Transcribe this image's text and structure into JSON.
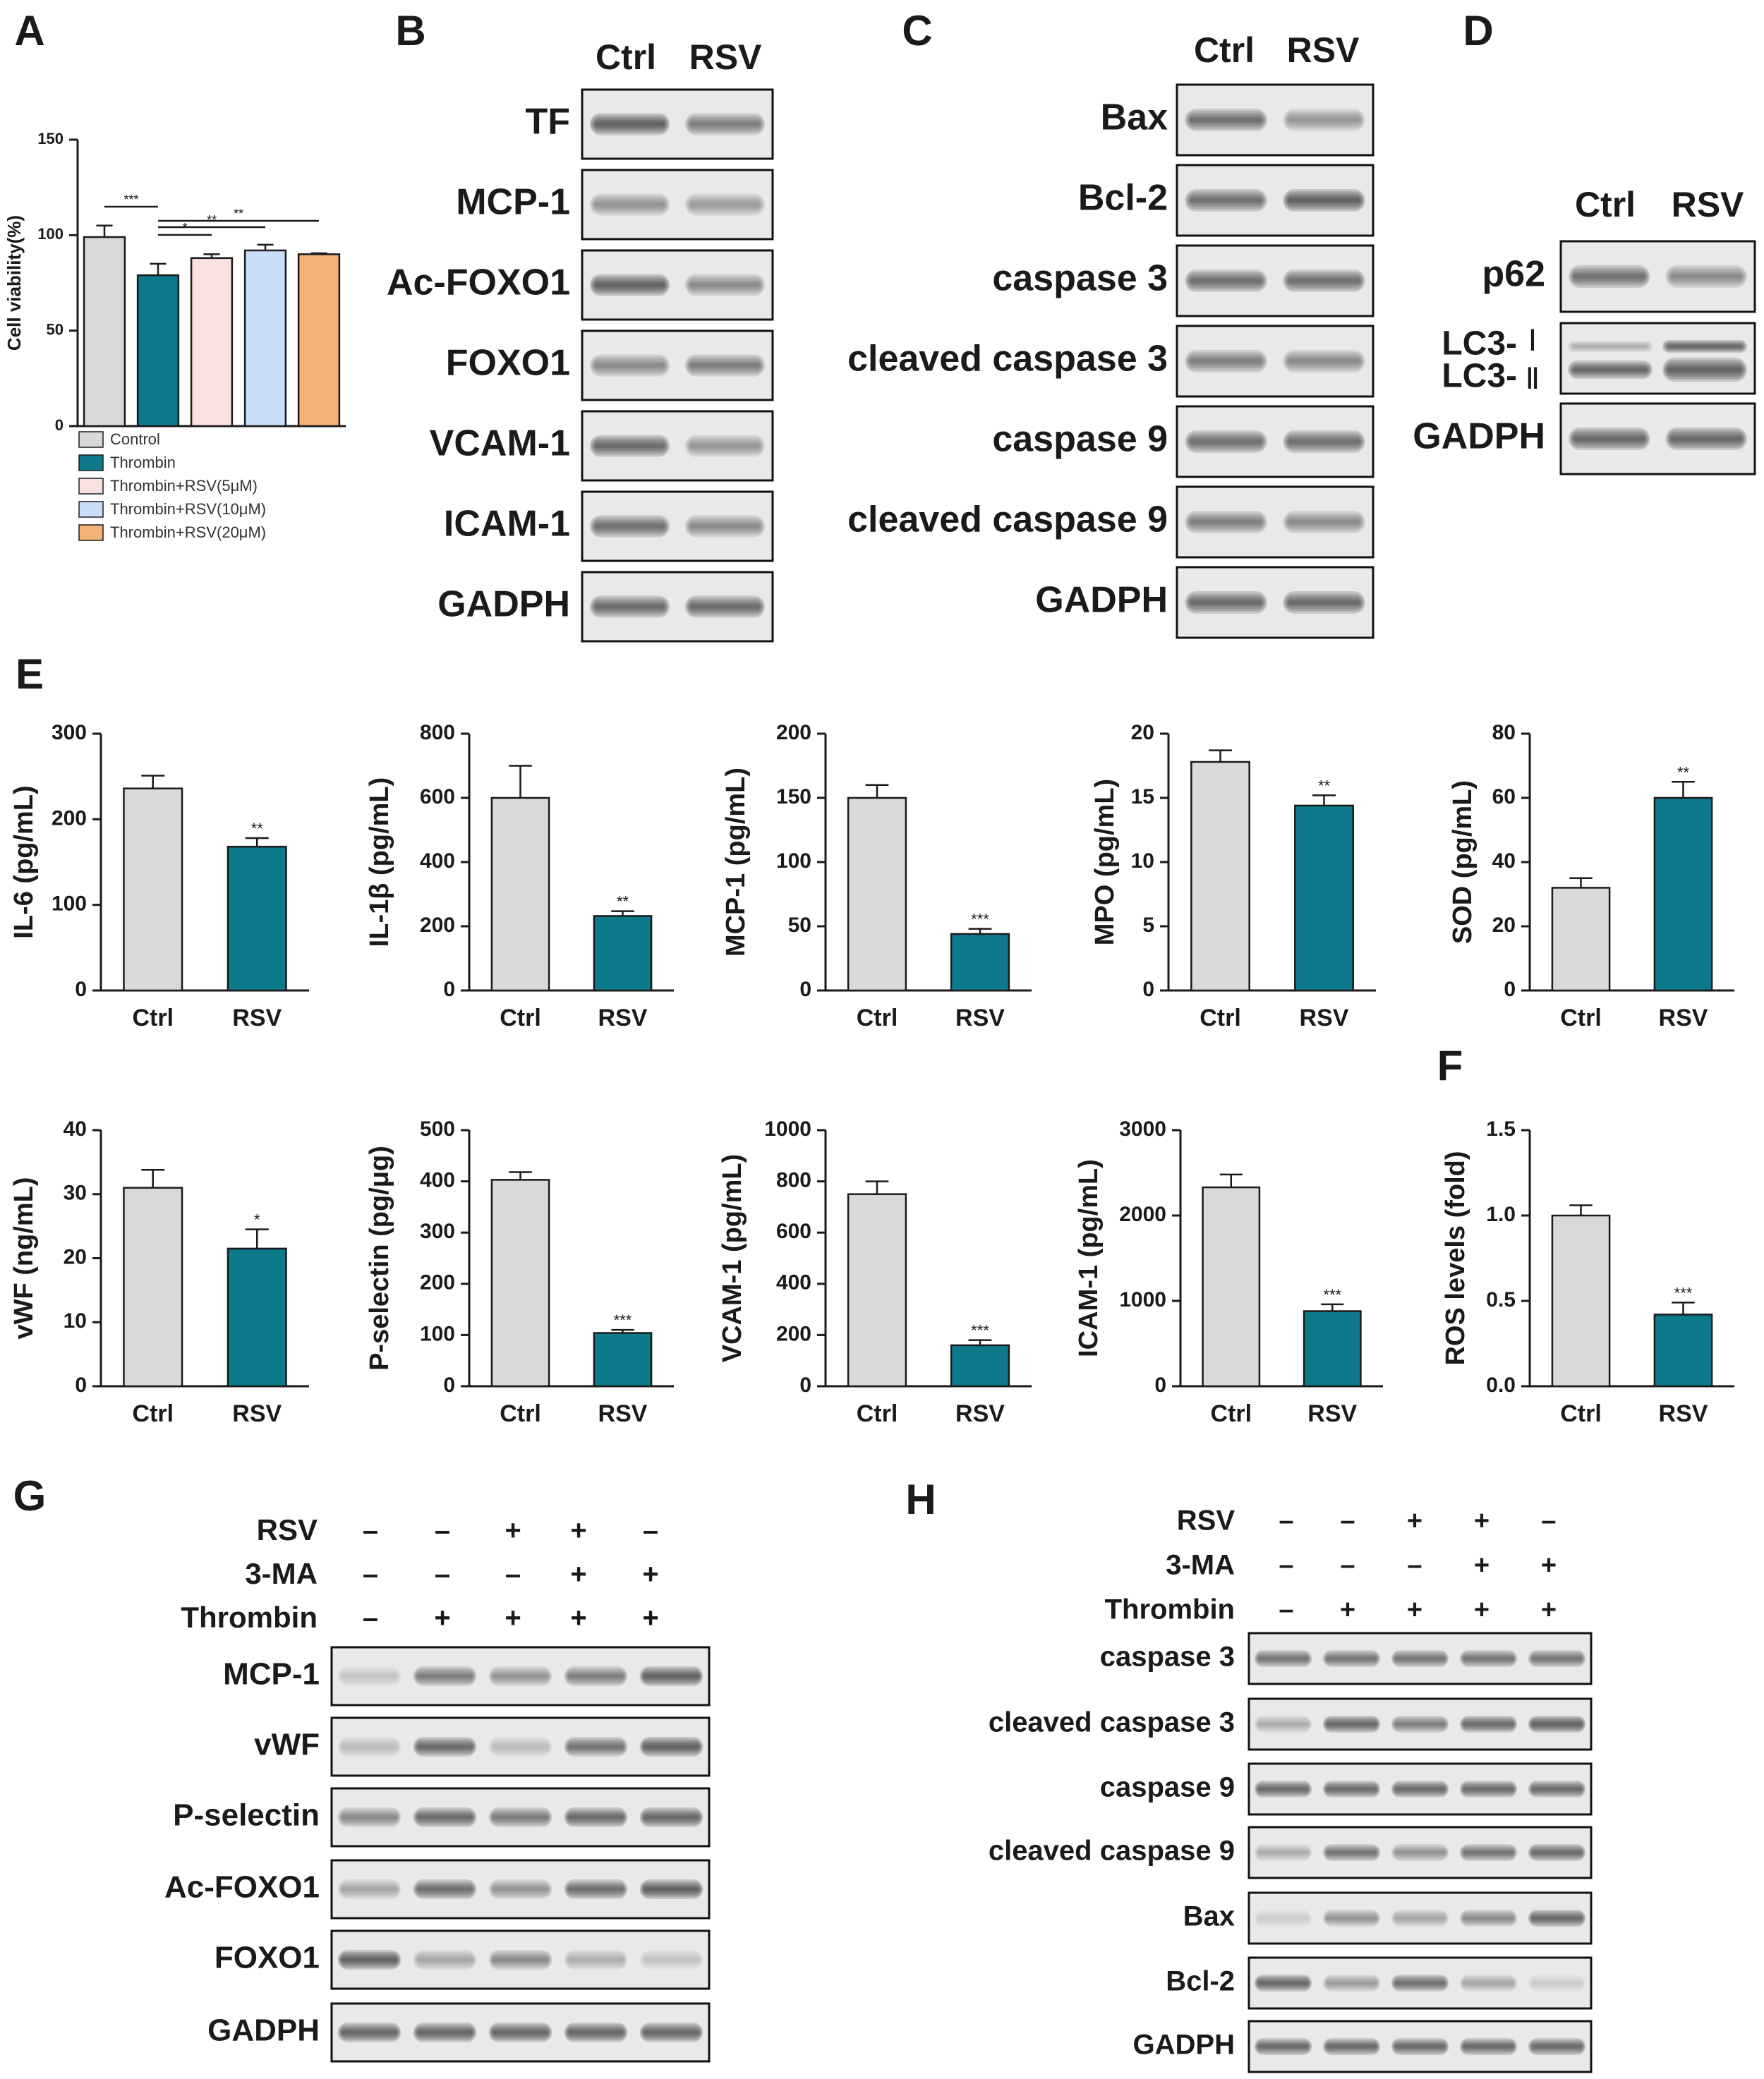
{
  "colors": {
    "ctrl": "#d9d9d9",
    "thrombin": "#0d7a8c",
    "rsv5": "#fbe0e1",
    "rsv10": "#c9defa",
    "rsv20": "#f4b278",
    "axis": "#1a1a1a"
  },
  "panel_labels": [
    "A",
    "B",
    "C",
    "D",
    "E",
    "F",
    "G",
    "H"
  ],
  "chart_data": [
    {
      "panel": "A",
      "type": "bar",
      "ylabel": "Cell viability(%)",
      "ylim": [
        0,
        150
      ],
      "yticks": [
        0,
        50,
        100,
        150
      ],
      "categories": [
        "Control",
        "Thrombin",
        "Thrombin+RSV(5μM)",
        "Thrombin+RSV(10μM)",
        "Thrombin+RSV(20μM)"
      ],
      "values": [
        99,
        79,
        88,
        92,
        90
      ],
      "errors": [
        6,
        6,
        2,
        3,
        0.5
      ],
      "bar_colors": [
        "#d9d9d9",
        "#0d7a8c",
        "#fbe0e1",
        "#c9defa",
        "#f4b278"
      ],
      "legend": [
        "Control",
        "Thrombin",
        "Thrombin+RSV(5μM)",
        "Thrombin+RSV(10μM)",
        "Thrombin+RSV(20μM)"
      ],
      "legend_position": "bottom",
      "significance": [
        {
          "from": 0,
          "to": 1,
          "label": "***"
        },
        {
          "from": 1,
          "to": 2,
          "label": "*"
        },
        {
          "from": 1,
          "to": 3,
          "label": "**"
        },
        {
          "from": 1,
          "to": 4,
          "label": "**"
        }
      ]
    },
    {
      "panel": "E",
      "type": "bar",
      "ylabel": "IL-6 (pg/mL)",
      "ylim": [
        0,
        300
      ],
      "yticks": [
        0,
        100,
        200,
        300
      ],
      "categories": [
        "Ctrl",
        "RSV"
      ],
      "values": [
        236,
        168
      ],
      "errors": [
        15,
        10
      ],
      "sig": "**"
    },
    {
      "panel": "E",
      "type": "bar",
      "ylabel": "IL-1β (pg/mL)",
      "ylim": [
        0,
        800
      ],
      "yticks": [
        0,
        200,
        400,
        600,
        800
      ],
      "categories": [
        "Ctrl",
        "RSV"
      ],
      "values": [
        600,
        232
      ],
      "errors": [
        100,
        15
      ],
      "sig": "**"
    },
    {
      "panel": "E",
      "type": "bar",
      "ylabel": "MCP-1 (pg/mL)",
      "ylim": [
        0,
        200
      ],
      "yticks": [
        0,
        50,
        100,
        150,
        200
      ],
      "categories": [
        "Ctrl",
        "RSV"
      ],
      "values": [
        150,
        44
      ],
      "errors": [
        10,
        4
      ],
      "sig": "***"
    },
    {
      "panel": "E",
      "type": "bar",
      "ylabel": "MPO (pg/mL)",
      "ylim": [
        0,
        20
      ],
      "yticks": [
        0,
        5,
        10,
        15,
        20
      ],
      "categories": [
        "Ctrl",
        "RSV"
      ],
      "values": [
        17.8,
        14.4
      ],
      "errors": [
        0.9,
        0.8
      ],
      "sig": "**"
    },
    {
      "panel": "E",
      "type": "bar",
      "ylabel": "SOD (pg/mL)",
      "ylim": [
        0,
        80
      ],
      "yticks": [
        0,
        20,
        40,
        60,
        80
      ],
      "categories": [
        "Ctrl",
        "RSV"
      ],
      "values": [
        32,
        60
      ],
      "errors": [
        3,
        5
      ],
      "sig": "**"
    },
    {
      "panel": "E",
      "type": "bar",
      "ylabel": "vWF (ng/mL)",
      "ylim": [
        0,
        40
      ],
      "yticks": [
        0,
        10,
        20,
        30,
        40
      ],
      "categories": [
        "Ctrl",
        "RSV"
      ],
      "values": [
        31,
        21.5
      ],
      "errors": [
        2.8,
        3
      ],
      "sig": "*"
    },
    {
      "panel": "E",
      "type": "bar",
      "ylabel": "P-selectin (pg/μg)",
      "ylim": [
        0,
        500
      ],
      "yticks": [
        0,
        100,
        200,
        300,
        400,
        500
      ],
      "categories": [
        "Ctrl",
        "RSV"
      ],
      "values": [
        403,
        104
      ],
      "errors": [
        15,
        6
      ],
      "sig": "***"
    },
    {
      "panel": "E",
      "type": "bar",
      "ylabel": "VCAM-1 (pg/mL)",
      "ylim": [
        0,
        1000
      ],
      "yticks": [
        0,
        200,
        400,
        600,
        800,
        1000
      ],
      "categories": [
        "Ctrl",
        "RSV"
      ],
      "values": [
        750,
        160
      ],
      "errors": [
        50,
        20
      ],
      "sig": "***"
    },
    {
      "panel": "E",
      "type": "bar",
      "ylabel": "ICAM-1 (pg/mL)",
      "ylim": [
        0,
        3000
      ],
      "yticks": [
        0,
        1000,
        2000,
        3000
      ],
      "categories": [
        "Ctrl",
        "RSV"
      ],
      "values": [
        2330,
        880
      ],
      "errors": [
        150,
        80
      ],
      "sig": "***"
    },
    {
      "panel": "F",
      "type": "bar",
      "ylabel": "ROS levels (fold)",
      "ylim": [
        0,
        1.5
      ],
      "yticks": [
        "0.0",
        "0.5",
        "1.0",
        "1.5"
      ],
      "categories": [
        "Ctrl",
        "RSV"
      ],
      "values": [
        1.0,
        0.42
      ],
      "errors": [
        0.06,
        0.07
      ],
      "sig": "***"
    }
  ],
  "blots": {
    "B": {
      "cols": [
        "Ctrl",
        "RSV"
      ],
      "rows": [
        "TF",
        "MCP-1",
        "Ac-FOXO1",
        "FOXO1",
        "VCAM-1",
        "ICAM-1",
        "GADPH"
      ]
    },
    "C": {
      "cols": [
        "Ctrl",
        "RSV"
      ],
      "rows": [
        "Bax",
        "Bcl-2",
        "caspase 3",
        "cleaved caspase 3",
        "caspase 9",
        "cleaved caspase 9",
        "GADPH"
      ]
    },
    "D": {
      "cols": [
        "Ctrl",
        "RSV"
      ],
      "rows": [
        "p62",
        "LC3-Ⅰ",
        "LC3-Ⅱ",
        "GADPH"
      ]
    },
    "G": {
      "treat_labels": [
        "RSV",
        "3-MA",
        "Thrombin"
      ],
      "treatments": [
        [
          "–",
          "–",
          "+",
          "+",
          "–"
        ],
        [
          "–",
          "–",
          "–",
          "+",
          "+"
        ],
        [
          "–",
          "+",
          "+",
          "+",
          "+"
        ]
      ],
      "rows": [
        "MCP-1",
        "vWF",
        "P-selectin",
        "Ac-FOXO1",
        "FOXO1",
        "GADPH"
      ]
    },
    "H": {
      "treat_labels": [
        "RSV",
        "3-MA",
        "Thrombin"
      ],
      "treatments": [
        [
          "–",
          "–",
          "+",
          "+",
          "–"
        ],
        [
          "–",
          "–",
          "–",
          "+",
          "+"
        ],
        [
          "–",
          "+",
          "+",
          "+",
          "+"
        ]
      ],
      "rows": [
        "caspase 3",
        "cleaved caspase 3",
        "caspase 9",
        "cleaved caspase 9",
        "Bax",
        "Bcl-2",
        "GADPH"
      ]
    }
  }
}
